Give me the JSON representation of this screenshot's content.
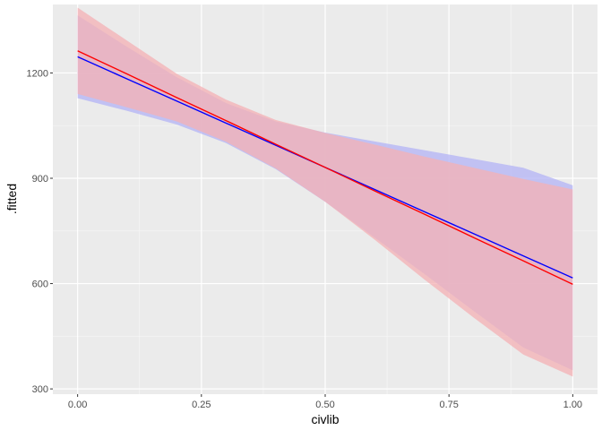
{
  "chart_data": {
    "type": "line",
    "title": "",
    "xlabel": "civlib",
    "ylabel": ".fitted",
    "xlim": [
      -0.05,
      1.05
    ],
    "ylim": [
      285,
      1395
    ],
    "grid": true,
    "legend": "none",
    "x_ticks": [
      0,
      0.25,
      0.5,
      0.75,
      1
    ],
    "x_tick_labels": [
      "0.00",
      "0.25",
      "0.50",
      "0.75",
      "1.00"
    ],
    "y_ticks": [
      300,
      600,
      900,
      1200
    ],
    "y_tick_labels": [
      "300",
      "600",
      "900",
      "1200"
    ],
    "series": [
      {
        "color": "#0000ff",
        "band_color": "#b3b3f5",
        "x": [
          0,
          0.1,
          0.2,
          0.3,
          0.4,
          0.5,
          0.6,
          0.7,
          0.8,
          0.9,
          1.0
        ],
        "fit": [
          1246,
          1183,
          1120,
          1057,
          994,
          931,
          868,
          805,
          742,
          679,
          616
        ],
        "lower": [
          1128,
          1092,
          1053,
          1000,
          926,
          833,
          731,
          628,
          522,
          418,
          353
        ],
        "upper": [
          1364,
          1274,
          1188,
          1114,
          1062,
          1030,
          1005,
          980,
          955,
          930,
          880
        ]
      },
      {
        "color": "#ff0000",
        "band_color": "#f4b0b4",
        "x": [
          0,
          0.1,
          0.2,
          0.3,
          0.4,
          0.5,
          0.6,
          0.7,
          0.8,
          0.9,
          1.0
        ],
        "fit": [
          1263,
          1197,
          1130,
          1064,
          997,
          931,
          864,
          798,
          731,
          665,
          598
        ],
        "lower": [
          1140,
          1102,
          1062,
          1004,
          928,
          833,
          725,
          612,
          503,
          398,
          335
        ],
        "upper": [
          1386,
          1292,
          1198,
          1124,
          1066,
          1029,
          996,
          962,
          930,
          898,
          868
        ]
      }
    ]
  }
}
